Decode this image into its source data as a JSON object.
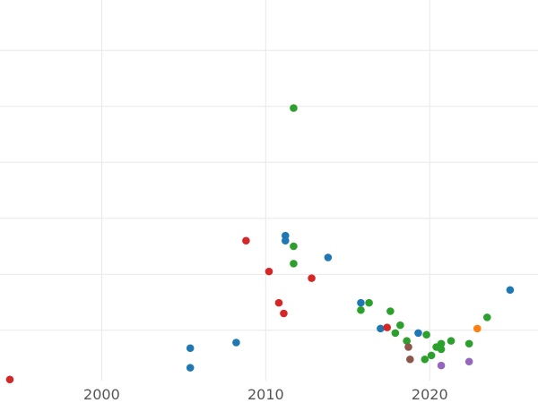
{
  "chart_data": {
    "type": "scatter",
    "title": "",
    "xlabel": "",
    "ylabel": "",
    "xlim": [
      1993.8,
      2026.6
    ],
    "ylim": [
      -0.9,
      5.9
    ],
    "x_ticks": [
      2000,
      2010,
      2020
    ],
    "y_gridlines": [
      0,
      1,
      2,
      3,
      4,
      5
    ],
    "grid": true,
    "legend": "none",
    "colors": {
      "blue": "#1f77b4",
      "green": "#2ca02c",
      "red": "#d62728",
      "orange": "#ff7f0e",
      "purple": "#9467bd",
      "brown": "#8c564b"
    },
    "series": [
      {
        "color": "#1f77b4",
        "points": [
          {
            "x": 2005.4,
            "y": -0.32
          },
          {
            "x": 2005.4,
            "y": -0.67
          },
          {
            "x": 2008.2,
            "y": -0.22
          },
          {
            "x": 2011.2,
            "y": 1.69
          },
          {
            "x": 2011.2,
            "y": 1.6
          },
          {
            "x": 2013.8,
            "y": 1.3
          },
          {
            "x": 2015.8,
            "y": 0.49
          },
          {
            "x": 2017.0,
            "y": 0.03
          },
          {
            "x": 2019.3,
            "y": -0.05
          },
          {
            "x": 2024.9,
            "y": 0.72
          }
        ]
      },
      {
        "color": "#2ca02c",
        "points": [
          {
            "x": 2011.7,
            "y": 3.97
          },
          {
            "x": 2011.7,
            "y": 1.5
          },
          {
            "x": 2011.7,
            "y": 1.19
          },
          {
            "x": 2015.8,
            "y": 0.36
          },
          {
            "x": 2016.3,
            "y": 0.49
          },
          {
            "x": 2017.6,
            "y": 0.34
          },
          {
            "x": 2017.9,
            "y": -0.05
          },
          {
            "x": 2018.2,
            "y": 0.09
          },
          {
            "x": 2018.6,
            "y": -0.19
          },
          {
            "x": 2019.7,
            "y": -0.52
          },
          {
            "x": 2019.8,
            "y": -0.08
          },
          {
            "x": 2020.1,
            "y": -0.45
          },
          {
            "x": 2020.4,
            "y": -0.3
          },
          {
            "x": 2020.7,
            "y": -0.24
          },
          {
            "x": 2020.7,
            "y": -0.34
          },
          {
            "x": 2021.3,
            "y": -0.19
          },
          {
            "x": 2022.4,
            "y": -0.24
          },
          {
            "x": 2023.5,
            "y": 0.23
          }
        ]
      },
      {
        "color": "#d62728",
        "points": [
          {
            "x": 1994.4,
            "y": -0.88
          },
          {
            "x": 2008.8,
            "y": 1.6
          },
          {
            "x": 2010.2,
            "y": 1.05
          },
          {
            "x": 2010.8,
            "y": 0.49
          },
          {
            "x": 2011.1,
            "y": 0.3
          },
          {
            "x": 2012.8,
            "y": 0.93
          },
          {
            "x": 2017.4,
            "y": 0.05
          }
        ]
      },
      {
        "color": "#ff7f0e",
        "points": [
          {
            "x": 2022.9,
            "y": 0.03
          }
        ]
      },
      {
        "color": "#9467bd",
        "points": [
          {
            "x": 2020.7,
            "y": -0.63
          },
          {
            "x": 2022.4,
            "y": -0.56
          }
        ]
      },
      {
        "color": "#8c564b",
        "points": [
          {
            "x": 2018.7,
            "y": -0.3
          },
          {
            "x": 2018.8,
            "y": -0.52
          }
        ]
      }
    ]
  }
}
